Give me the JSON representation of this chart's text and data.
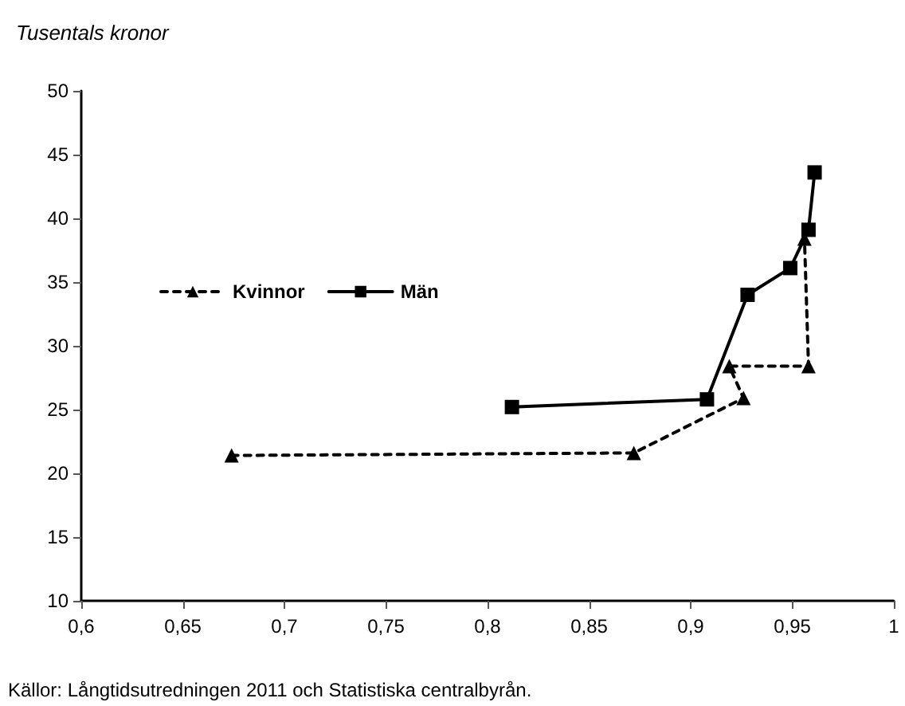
{
  "chart_data": {
    "type": "line",
    "ylabel": "Tusentals kronor",
    "series": [
      {
        "name": "Kvinnor",
        "color": "#000000",
        "marker": "triangle",
        "line_style": "dashed",
        "x": [
          0.674,
          0.872,
          0.926,
          0.919,
          0.958,
          0.956
        ],
        "values": [
          21.4,
          21.6,
          25.9,
          28.4,
          28.4,
          38.4
        ]
      },
      {
        "name": "Män",
        "color": "#000000",
        "marker": "square",
        "line_style": "solid",
        "x": [
          0.812,
          0.908,
          0.928,
          0.949,
          0.958,
          0.961
        ],
        "values": [
          25.2,
          25.8,
          34,
          36.1,
          39.1,
          43.6
        ]
      }
    ],
    "xlim": [
      0.6,
      1
    ],
    "xticks": [
      {
        "value": 0.6,
        "label": "0,6"
      },
      {
        "value": 0.65,
        "label": "0,65"
      },
      {
        "value": 0.7,
        "label": "0,7"
      },
      {
        "value": 0.75,
        "label": "0,75"
      },
      {
        "value": 0.8,
        "label": "0,8"
      },
      {
        "value": 0.85,
        "label": "0,85"
      },
      {
        "value": 0.9,
        "label": "0,9"
      },
      {
        "value": 0.95,
        "label": "0,95"
      },
      {
        "value": 1,
        "label": "1"
      }
    ],
    "ylim": [
      10,
      50
    ],
    "yticks": [
      10,
      15,
      20,
      25,
      30,
      35,
      40,
      45,
      50
    ],
    "grid": false,
    "legend": "left",
    "annotations": [
      "Källor: Långtidsutredningen 2011 och Statistiska centralbyrån."
    ]
  }
}
